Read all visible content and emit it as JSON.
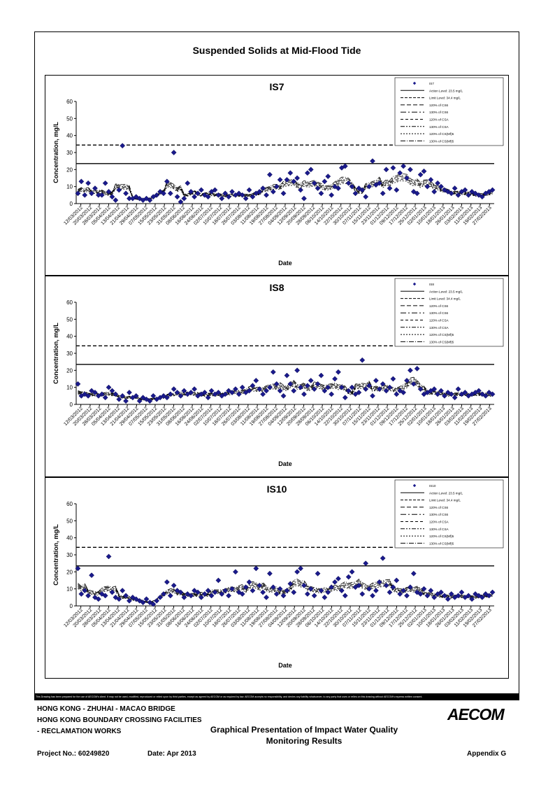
{
  "title": "Suspended Solids at Mid-Flood Tide",
  "disclaimer": "This Drawing has been prepared for the use of AECOM's client. It may not be used, modified, reproduced or relied upon by third parties, except as agreed by AECOM or as required by law. AECOM accepts no responsibility, and denies any liability whatsoever, to any party that uses or relies on this drawing without AECOM's express written consent.",
  "footer": {
    "line1": "HONG KONG - ZHUHAI - MACAO BRIDGE",
    "line2": "HONG KONG BOUNDARY CROSSING FACILITIES",
    "line3": "- RECLAMATION WORKS",
    "subtitle1": "Graphical Presentation of Impact Water Quality",
    "subtitle2": "Monitoring Results",
    "project": "Project No.: 60249820",
    "date": "Date: Apr 2013",
    "appendix": "Appendix G",
    "logo": "AECOM"
  },
  "colors": {
    "marker": "#1a1a8c",
    "line": "#000000"
  },
  "chart_data": [
    {
      "type": "line",
      "title": "IS7",
      "xlabel": "Date",
      "ylabel": "Concentration, mg/L",
      "ylim": [
        0,
        60
      ],
      "yticks": [
        0,
        10,
        20,
        30,
        40,
        50,
        60
      ],
      "action_level": 23.5,
      "limit_level": 34.4,
      "xticks": [
        "12/03/2012",
        "20/03/2012",
        "28/03/2012",
        "05/04/2012",
        "13/04/2012",
        "21/04/2012",
        "29/04/2012",
        "07/05/2012",
        "15/05/2012",
        "23/05/2012",
        "31/05/2012",
        "08/06/2012",
        "16/06/2012",
        "24/06/2012",
        "02/07/2012",
        "10/07/2012",
        "18/07/2012",
        "26/07/2012",
        "03/08/2012",
        "11/08/2012",
        "19/08/2012",
        "27/08/2012",
        "04/09/2012",
        "12/09/2012",
        "20/09/2012",
        "28/09/2012",
        "06/10/2012",
        "14/10/2012",
        "22/10/2012",
        "30/10/2012",
        "07/11/2012",
        "15/11/2012",
        "23/11/2012",
        "01/12/2012",
        "09/12/2012",
        "17/12/2012",
        "25/12/2012",
        "02/01/2013",
        "10/01/2013",
        "18/01/2013",
        "26/01/2013",
        "03/02/2013",
        "11/02/2013",
        "19/02/2013",
        "27/02/2013"
      ],
      "legend": [
        "IS7",
        "Action Level: 23.5 mg/L",
        "Limit Level: 34.4 mg/L",
        "120% of CS6",
        "130% of CS6",
        "120% of CSA",
        "130% of CSA",
        "120% of CS(Mf)5",
        "130% of CS(Mf)5"
      ],
      "observed": [
        6,
        13,
        5,
        12,
        6,
        9,
        5,
        5,
        12,
        7,
        4,
        2,
        8,
        34,
        6,
        3,
        3,
        4,
        3,
        2,
        3,
        2,
        4,
        5,
        7,
        6,
        13,
        6,
        30,
        4,
        1,
        3,
        12,
        7,
        4,
        6,
        8,
        5,
        4,
        7,
        8,
        5,
        3,
        6,
        4,
        7,
        5,
        6,
        5,
        3,
        8,
        4,
        6,
        7,
        9,
        5,
        17,
        7,
        10,
        14,
        6,
        14,
        18,
        13,
        15,
        8,
        3,
        18,
        20,
        12,
        9,
        6,
        13,
        16,
        5,
        10,
        9,
        21,
        22,
        12,
        10,
        6,
        9,
        8,
        4,
        10,
        25,
        11,
        12,
        6,
        20,
        9,
        21,
        8,
        18,
        22,
        15,
        20,
        7,
        6,
        17,
        19,
        10,
        14,
        7,
        12,
        10,
        8,
        7,
        6,
        9,
        5,
        7,
        8,
        5,
        7,
        6,
        5,
        4,
        6,
        7,
        8
      ]
    },
    {
      "type": "line",
      "title": "IS8",
      "xlabel": "Date",
      "ylabel": "Concentration, mg/L",
      "ylim": [
        0,
        60
      ],
      "yticks": [
        0,
        10,
        20,
        30,
        40,
        50,
        60
      ],
      "action_level": 23.5,
      "limit_level": 34.4,
      "xticks": [
        "12/03/2012",
        "20/03/2012",
        "28/03/2012",
        "05/04/2012",
        "13/04/2012",
        "21/04/2012",
        "29/04/2012",
        "07/05/2012",
        "15/05/2012",
        "23/05/2012",
        "31/05/2012",
        "08/06/2012",
        "16/06/2012",
        "24/06/2012",
        "02/07/2012",
        "10/07/2012",
        "18/07/2012",
        "26/07/2012",
        "03/08/2012",
        "11/08/2012",
        "19/08/2012",
        "27/08/2012",
        "04/09/2012",
        "12/09/2012",
        "20/09/2012",
        "28/09/2012",
        "06/10/2012",
        "14/10/2012",
        "22/10/2012",
        "30/10/2012",
        "07/11/2012",
        "15/11/2012",
        "23/11/2012",
        "01/12/2012",
        "09/12/2012",
        "17/12/2012",
        "25/12/2012",
        "02/01/2013",
        "10/01/2013",
        "18/01/2013",
        "26/01/2013",
        "03/02/2013",
        "11/02/2013",
        "19/02/2013",
        "27/02/2013"
      ],
      "legend": [
        "IS8",
        "Action Level: 23.5 mg/L",
        "Limit Level: 34.4 mg/L",
        "120% of CS6",
        "130% of CS6",
        "120% of CSA",
        "130% of CSA",
        "120% of CS(Mf)5",
        "130% of CS(Mf)5"
      ],
      "observed": [
        12,
        5,
        6,
        5,
        8,
        7,
        5,
        6,
        4,
        10,
        8,
        6,
        3,
        5,
        2,
        7,
        4,
        5,
        2,
        4,
        3,
        2,
        5,
        3,
        4,
        5,
        4,
        6,
        9,
        7,
        5,
        8,
        6,
        7,
        9,
        5,
        6,
        7,
        4,
        8,
        6,
        7,
        5,
        6,
        8,
        7,
        9,
        6,
        10,
        7,
        8,
        11,
        14,
        9,
        6,
        8,
        10,
        19,
        12,
        8,
        5,
        17,
        12,
        8,
        20,
        10,
        6,
        11,
        14,
        9,
        12,
        17,
        8,
        10,
        6,
        15,
        19,
        10,
        4,
        8,
        10,
        6,
        7,
        26,
        9,
        11,
        5,
        14,
        9,
        12,
        8,
        10,
        15,
        6,
        8,
        7,
        14,
        20,
        12,
        21,
        9,
        6,
        7,
        8,
        9,
        6,
        8,
        5,
        7,
        6,
        4,
        9,
        6,
        7,
        5,
        6,
        7,
        8,
        6,
        5,
        7,
        6
      ]
    },
    {
      "type": "line",
      "title": "IS10",
      "xlabel": "Date",
      "ylabel": "Concentration, mg/L",
      "ylim": [
        0,
        60
      ],
      "yticks": [
        0,
        10,
        20,
        30,
        40,
        50,
        60
      ],
      "action_level": 23.5,
      "limit_level": 34.4,
      "xticks": [
        "12/03/2012",
        "20/03/2012",
        "28/03/2012",
        "05/04/2012",
        "13/04/2012",
        "21/04/2012",
        "29/04/2012",
        "07/05/2012",
        "15/05/2012",
        "23/05/2012",
        "31/05/2012",
        "08/06/2012",
        "16/06/2012",
        "24/06/2012",
        "02/07/2012",
        "10/07/2012",
        "18/07/2012",
        "26/07/2012",
        "03/08/2012",
        "11/08/2012",
        "19/08/2012",
        "27/08/2012",
        "04/09/2012",
        "12/09/2012",
        "20/09/2012",
        "28/09/2012",
        "06/10/2012",
        "14/10/2012",
        "22/10/2012",
        "30/10/2012",
        "07/11/2012",
        "15/11/2012",
        "23/11/2012",
        "01/12/2012",
        "09/12/2012",
        "17/12/2012",
        "25/12/2012",
        "02/01/2013",
        "10/01/2013",
        "18/01/2013",
        "26/01/2013",
        "03/02/2013",
        "11/02/2013",
        "19/02/2013",
        "27/02/2013"
      ],
      "legend": [
        "IS10",
        "Action Level: 23.5 mg/L",
        "Limit Level: 34.4 mg/L",
        "120% of CS6",
        "130% of CS6",
        "120% of CSA",
        "130% of CSA",
        "120% of CS(Mf)5",
        "130% of CS(Mf)5"
      ],
      "observed": [
        22,
        7,
        9,
        6,
        18,
        5,
        4,
        7,
        6,
        29,
        8,
        5,
        4,
        9,
        6,
        3,
        5,
        4,
        3,
        2,
        4,
        2,
        1,
        3,
        5,
        7,
        14,
        6,
        12,
        9,
        8,
        5,
        7,
        6,
        9,
        8,
        5,
        7,
        9,
        6,
        8,
        15,
        7,
        9,
        6,
        10,
        20,
        8,
        7,
        11,
        14,
        9,
        22,
        12,
        8,
        5,
        19,
        11,
        7,
        10,
        6,
        9,
        13,
        8,
        20,
        22,
        12,
        7,
        10,
        6,
        19,
        9,
        5,
        8,
        11,
        14,
        16,
        9,
        6,
        17,
        20,
        11,
        12,
        7,
        25,
        10,
        6,
        9,
        14,
        28,
        12,
        8,
        11,
        15,
        7,
        9,
        6,
        11,
        19,
        8,
        7,
        10,
        6,
        9,
        5,
        7,
        8,
        6,
        4,
        7,
        5,
        6,
        8,
        5,
        6,
        4,
        7,
        6,
        5,
        7,
        6,
        8
      ]
    }
  ]
}
